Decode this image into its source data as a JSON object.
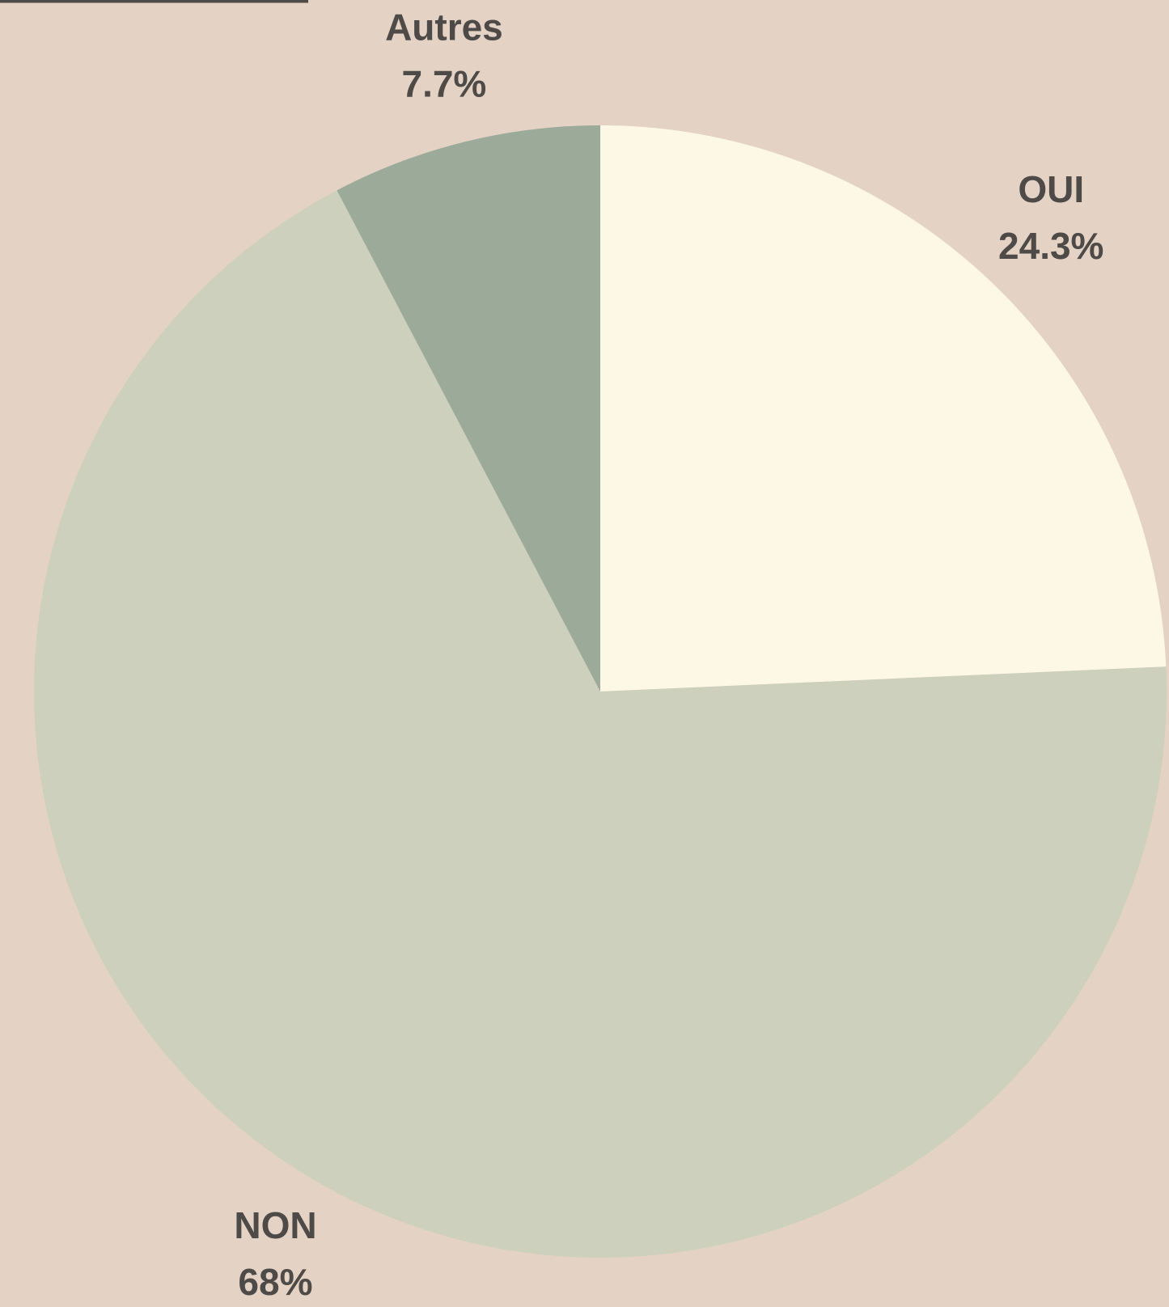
{
  "chart_data": {
    "type": "pie",
    "categories": [
      "OUI",
      "NON",
      "Autres"
    ],
    "values": [
      24.3,
      68,
      7.7
    ],
    "value_labels": [
      "24.3%",
      "68%",
      "7.7%"
    ],
    "colors": [
      "#fdf8e6",
      "#ccd0bd",
      "#9caa99"
    ]
  }
}
